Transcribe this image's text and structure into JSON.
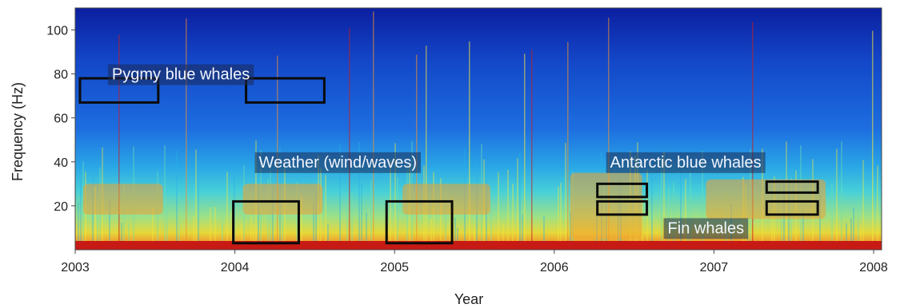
{
  "chart_data": {
    "type": "heatmap",
    "title": "",
    "xlabel": "Year",
    "ylabel": "Frequency (Hz)",
    "xlim": [
      2003.0,
      2008.05
    ],
    "ylim": [
      0,
      110
    ],
    "x_ticks": [
      "2003",
      "2004",
      "2005",
      "2006",
      "2007",
      "2008"
    ],
    "y_ticks": [
      "20",
      "40",
      "60",
      "80",
      "100"
    ],
    "colormap": [
      "#0a1f9e",
      "#1e64d8",
      "#29b3e8",
      "#6fe0b0",
      "#f4e83a",
      "#f2902a",
      "#c81e1e"
    ],
    "annotations": [
      {
        "label": "Pygmy blue whales",
        "x": 2003.2,
        "y": 80
      },
      {
        "label": "Weather (wind/waves)",
        "x": 2004.12,
        "y": 40
      },
      {
        "label": "Antarctic blue whales",
        "x": 2006.32,
        "y": 40
      },
      {
        "label": "Fin whales",
        "x": 2006.68,
        "y": 10
      }
    ],
    "regions": [
      {
        "category": "pygmy-blue-whales",
        "x": [
          2003.03,
          2003.52
        ],
        "y": [
          67,
          78
        ]
      },
      {
        "category": "pygmy-blue-whales",
        "x": [
          2004.07,
          2004.56
        ],
        "y": [
          67,
          78
        ]
      },
      {
        "category": "weather",
        "x": [
          2003.99,
          2004.4
        ],
        "y": [
          3,
          22
        ]
      },
      {
        "category": "weather",
        "x": [
          2004.95,
          2005.36
        ],
        "y": [
          3,
          22
        ]
      },
      {
        "category": "antarctic-blue-whales",
        "x": [
          2006.27,
          2006.58
        ],
        "y": [
          24,
          30
        ]
      },
      {
        "category": "antarctic-blue-whales",
        "x": [
          2006.27,
          2006.58
        ],
        "y": [
          16,
          22
        ]
      },
      {
        "category": "antarctic-blue-whales",
        "x": [
          2007.33,
          2007.65
        ],
        "y": [
          26,
          31
        ]
      },
      {
        "category": "antarctic-blue-whales",
        "x": [
          2007.33,
          2007.65
        ],
        "y": [
          16,
          22
        ]
      }
    ],
    "grid": false
  }
}
